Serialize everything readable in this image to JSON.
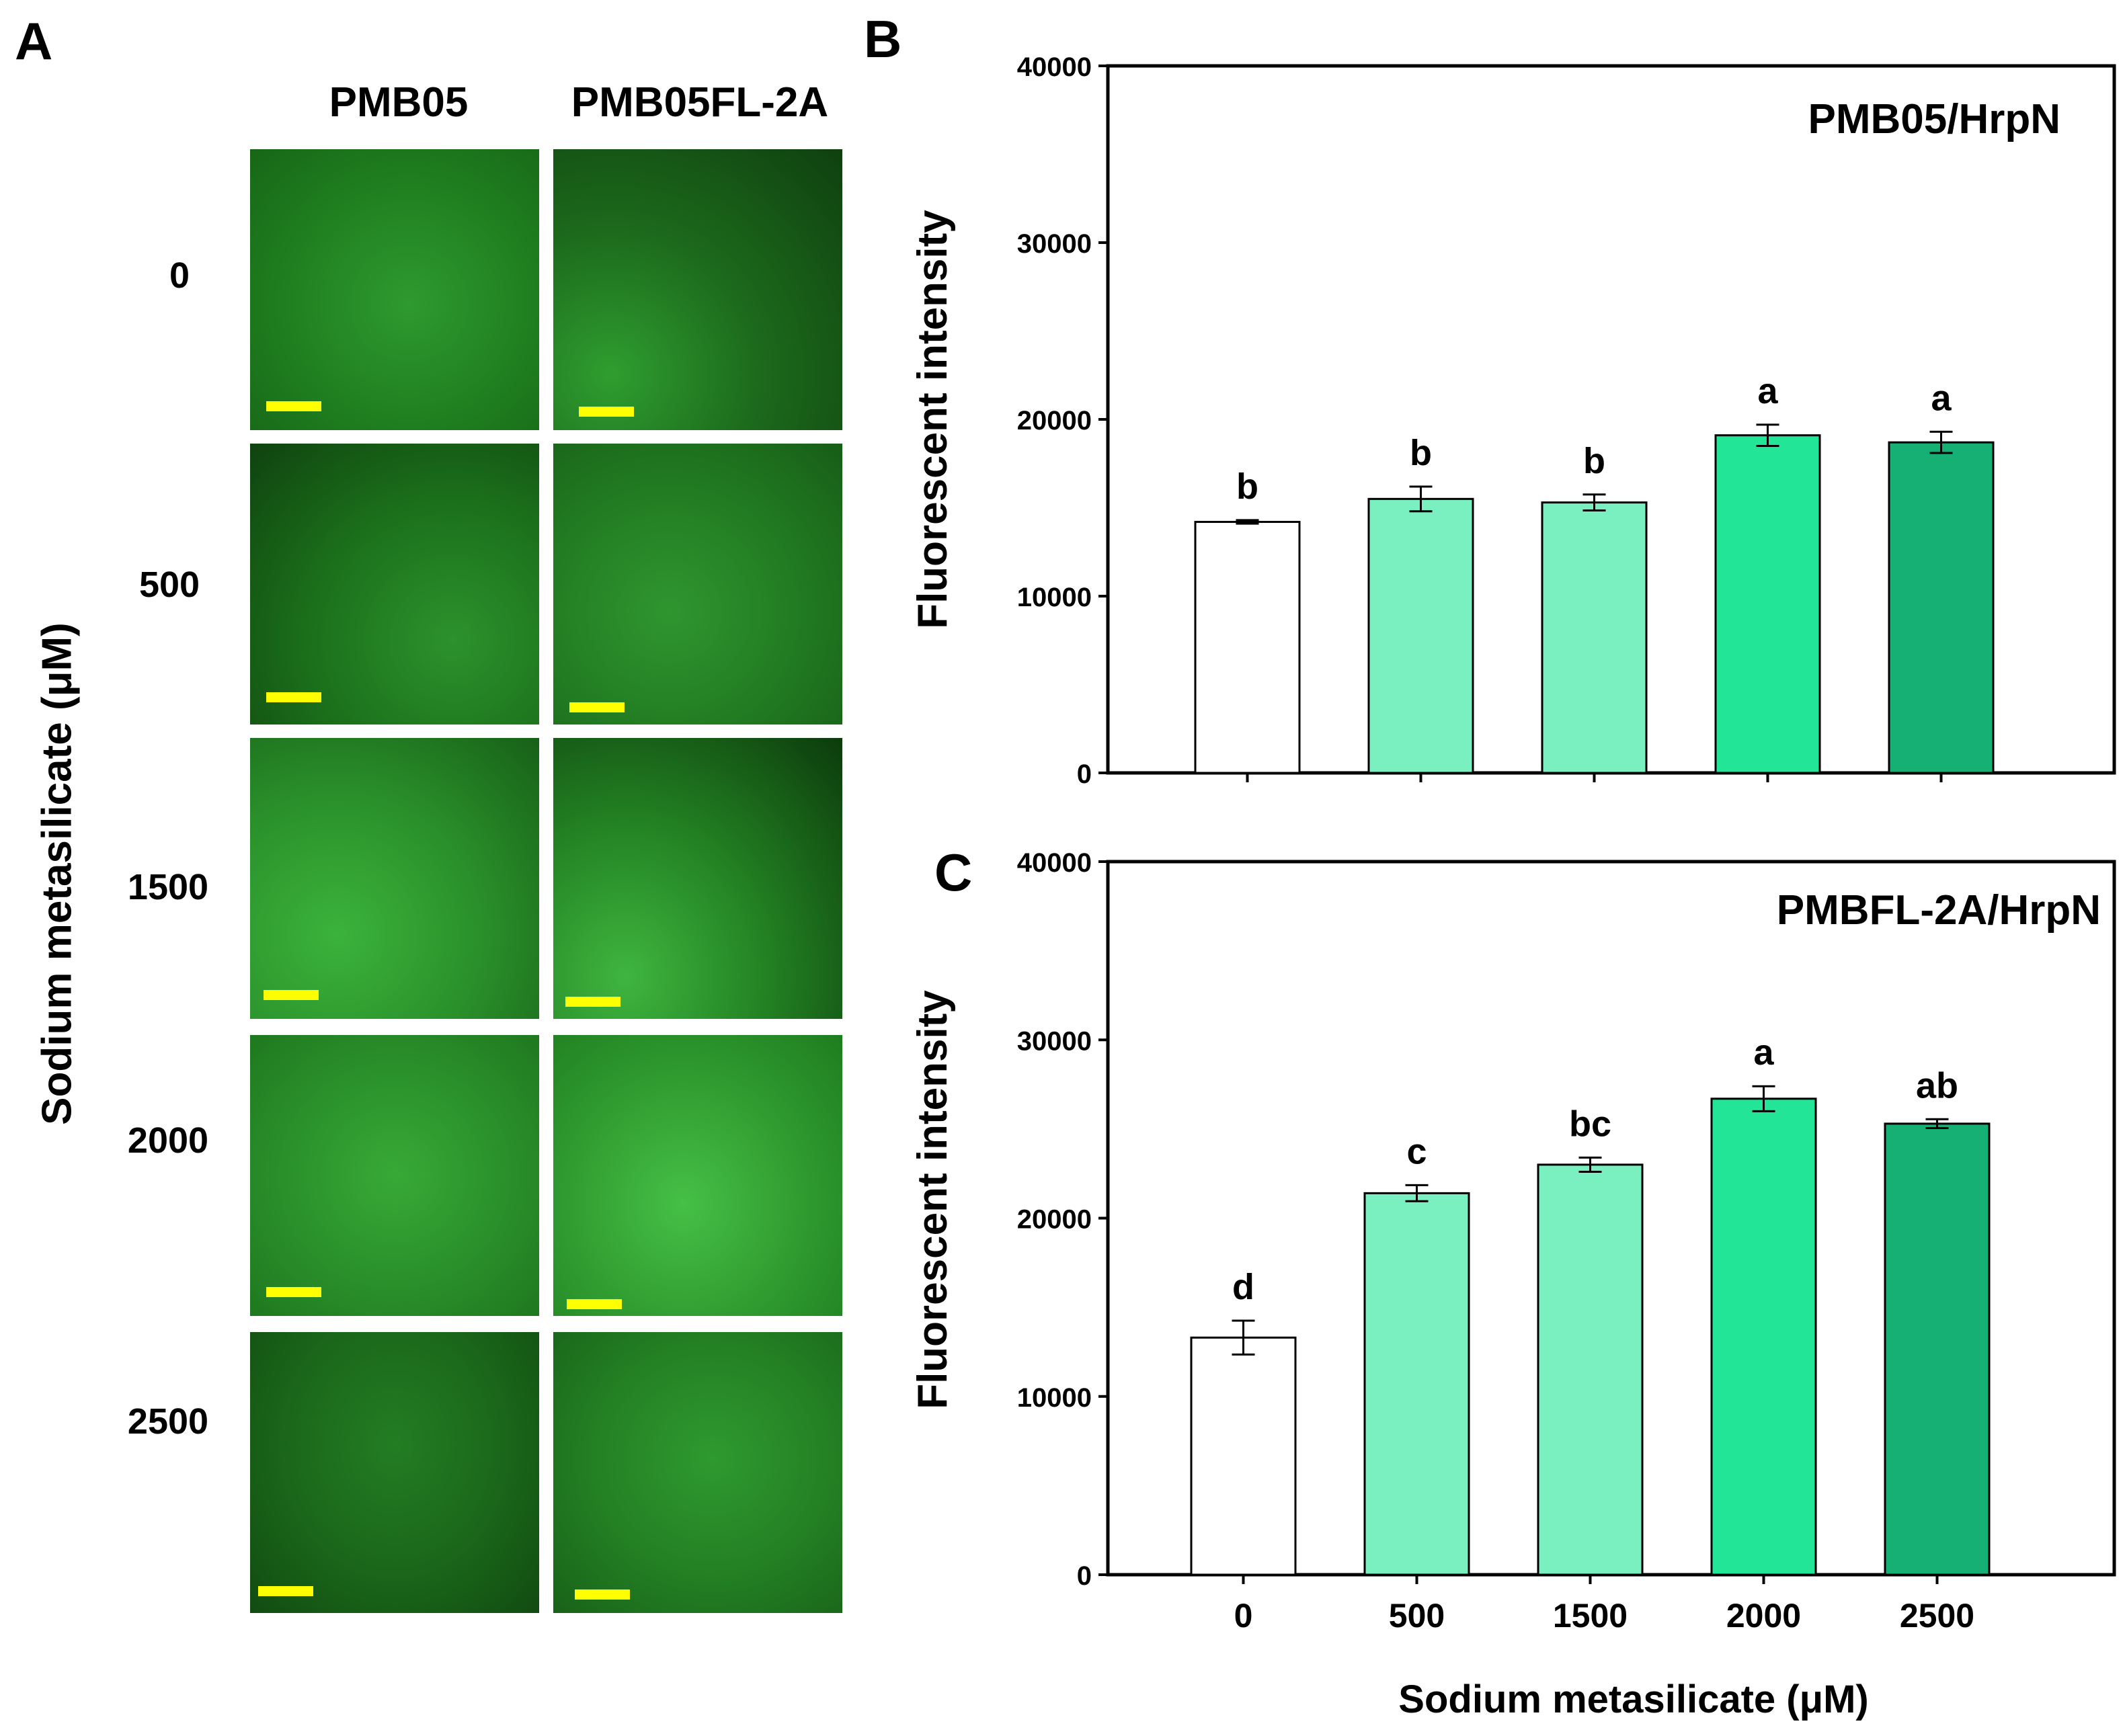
{
  "panel_a": {
    "letter": "A",
    "column_labels": [
      "PMB05",
      "PMB05FL-2A"
    ],
    "row_labels": [
      "0",
      "500",
      "1500",
      "2000",
      "2500"
    ],
    "y_axis_label": "Sodium metasilicate (μM)",
    "image_tint": "#1f8a1f",
    "scale_bar_color": "#ffff00"
  },
  "chart_data": [
    {
      "letter": "B",
      "type": "bar",
      "title": "PMB05/HrpN",
      "ylabel": "Fluorescent intensity",
      "xlabel": "",
      "categories": [
        "0",
        "500",
        "1500",
        "2000",
        "2500"
      ],
      "values": [
        14200,
        15500,
        15300,
        19100,
        18700
      ],
      "errors": [
        100,
        700,
        450,
        600,
        600
      ],
      "significance": [
        "b",
        "b",
        "b",
        "a",
        "a"
      ],
      "colors": [
        "#ffffff",
        "#7af0c0",
        "#7af0c0",
        "#22e597",
        "#16b074"
      ],
      "ylim": [
        0,
        40000
      ],
      "yticks": [
        0,
        10000,
        20000,
        30000,
        40000
      ],
      "show_xtick_labels": false
    },
    {
      "letter": "C",
      "type": "bar",
      "title": "PMBFL-2A/HrpN",
      "ylabel": "Fluorescent intensity",
      "xlabel": "Sodium metasilicate (μM)",
      "categories": [
        "0",
        "500",
        "1500",
        "2000",
        "2500"
      ],
      "values": [
        13300,
        21400,
        23000,
        26700,
        25300
      ],
      "errors": [
        950,
        450,
        400,
        700,
        250
      ],
      "significance": [
        "d",
        "c",
        "bc",
        "a",
        "ab"
      ],
      "colors": [
        "#ffffff",
        "#7af0c0",
        "#7af0c0",
        "#22e597",
        "#16b074"
      ],
      "ylim": [
        0,
        40000
      ],
      "yticks": [
        0,
        10000,
        20000,
        30000,
        40000
      ],
      "show_xtick_labels": true
    }
  ]
}
